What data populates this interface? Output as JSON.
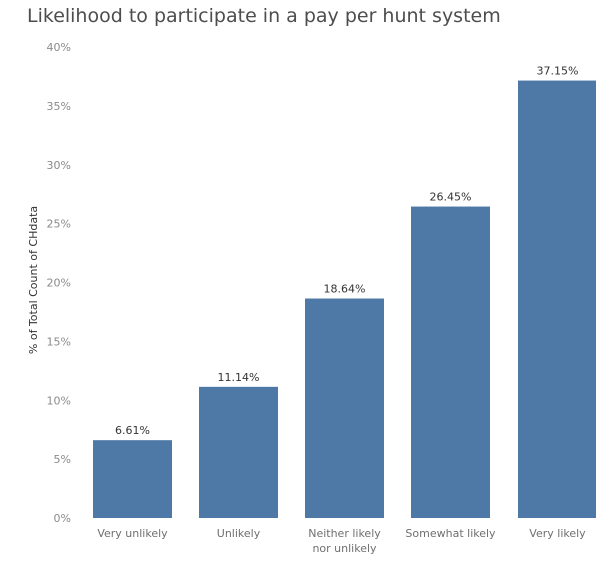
{
  "chart_data": {
    "type": "bar",
    "title": "Likelihood to participate in a pay per hunt system",
    "ylabel": "% of Total Count of CHdata",
    "xlabel": "",
    "categories": [
      [
        "Very unlikely"
      ],
      [
        "Unlikely"
      ],
      [
        "Neither likely",
        "nor unlikely"
      ],
      [
        "Somewhat likely"
      ],
      [
        "Very likely"
      ]
    ],
    "values": [
      6.61,
      11.14,
      18.64,
      26.45,
      37.15
    ],
    "data_labels": [
      "6.61%",
      "11.14%",
      "18.64%",
      "26.45%",
      "37.15%"
    ],
    "ylim": [
      0,
      40
    ],
    "yticks": [
      0,
      5,
      10,
      15,
      20,
      25,
      30,
      35,
      40
    ],
    "ytick_labels": [
      "0%",
      "5%",
      "10%",
      "15%",
      "20%",
      "25%",
      "30%",
      "35%",
      "40%"
    ],
    "grid": false,
    "bar_color": "#4e79a7"
  }
}
